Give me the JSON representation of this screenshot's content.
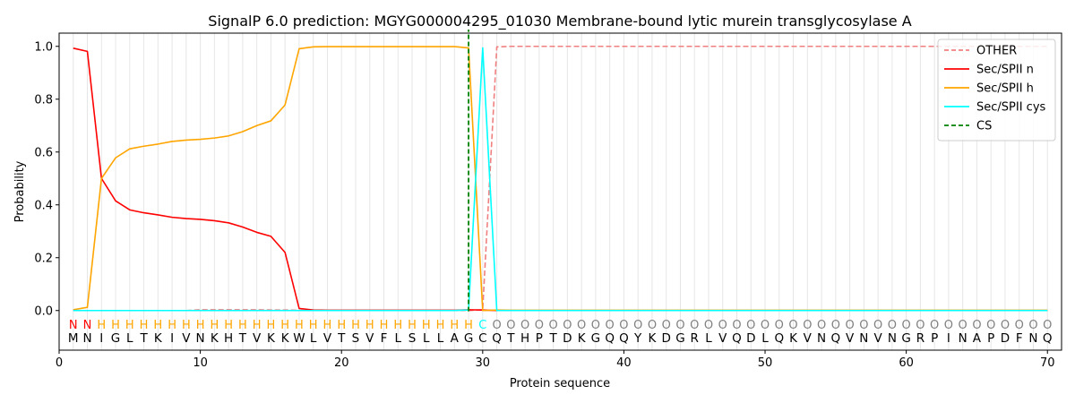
{
  "chart_data": {
    "type": "line",
    "title": "SignalP 6.0 prediction: MGYG000004295_01030 Membrane-bound lytic murein transglycosylase A",
    "xlabel": "Protein sequence",
    "ylabel": "Probability",
    "xlim": [
      0,
      71
    ],
    "ylim": [
      -0.15,
      1.05
    ],
    "xticks": [
      0,
      10,
      20,
      30,
      40,
      50,
      60,
      70
    ],
    "yticks": [
      0.0,
      0.2,
      0.4,
      0.6,
      0.8,
      1.0
    ],
    "xtick_labels": [
      "0",
      "10",
      "20",
      "30",
      "40",
      "50",
      "60",
      "70"
    ],
    "ytick_labels": [
      "0.0",
      "0.2",
      "0.4",
      "0.6",
      "0.8",
      "1.0"
    ],
    "grid": "vertical lines at each residue",
    "legend_position": "top-right",
    "sequence": [
      "M",
      "N",
      "I",
      "G",
      "L",
      "T",
      "K",
      "I",
      "V",
      "N",
      "K",
      "H",
      "T",
      "V",
      "K",
      "K",
      "W",
      "L",
      "V",
      "T",
      "S",
      "V",
      "F",
      "L",
      "S",
      "L",
      "L",
      "A",
      "G",
      "C",
      "Q",
      "T",
      "H",
      "P",
      "T",
      "D",
      "K",
      "G",
      "Q",
      "Q",
      "Y",
      "K",
      "D",
      "G",
      "R",
      "L",
      "V",
      "Q",
      "D",
      "L",
      "Q",
      "K",
      "V",
      "N",
      "Q",
      "V",
      "N",
      "V",
      "N",
      "G",
      "R",
      "P",
      "I",
      "N",
      "A",
      "P",
      "D",
      "F",
      "N",
      "Q"
    ],
    "annotation": [
      "N",
      "N",
      "H",
      "H",
      "H",
      "H",
      "H",
      "H",
      "H",
      "H",
      "H",
      "H",
      "H",
      "H",
      "H",
      "H",
      "H",
      "H",
      "H",
      "H",
      "H",
      "H",
      "H",
      "H",
      "H",
      "H",
      "H",
      "H",
      "H",
      "C",
      "O",
      "O",
      "O",
      "O",
      "O",
      "O",
      "O",
      "O",
      "O",
      "O",
      "O",
      "O",
      "O",
      "O",
      "O",
      "O",
      "O",
      "O",
      "O",
      "O",
      "O",
      "O",
      "O",
      "O",
      "O",
      "O",
      "O",
      "O",
      "O",
      "O",
      "O",
      "O",
      "O",
      "O",
      "O",
      "O",
      "O",
      "O",
      "O",
      "O"
    ],
    "annotation_colors": {
      "N": "#ff0000",
      "H": "#ffa500",
      "C": "#00ffff",
      "O": "#808080"
    },
    "series": [
      {
        "name": "OTHER",
        "color": "#f08080",
        "dash": true,
        "values": [
          0.0,
          0.0,
          0.0,
          0.0,
          0.0,
          0.0,
          0.0,
          0.0,
          0.0,
          0.003,
          0.003,
          0.003,
          0.003,
          0.003,
          0.002,
          0.002,
          0.001,
          0.001,
          0.0,
          0.0,
          0.0,
          0.0,
          0.0,
          0.0,
          0.0,
          0.0,
          0.0,
          0.0,
          0.0,
          0.003,
          0.998,
          1.0,
          1.0,
          1.0,
          1.0,
          1.0,
          1.0,
          1.0,
          1.0,
          1.0,
          1.0,
          1.0,
          1.0,
          1.0,
          1.0,
          1.0,
          1.0,
          1.0,
          1.0,
          1.0,
          1.0,
          1.0,
          1.0,
          1.0,
          1.0,
          1.0,
          1.0,
          1.0,
          1.0,
          1.0,
          1.0,
          1.0,
          1.0,
          1.0,
          1.0,
          1.0,
          1.0,
          1.0,
          1.0,
          1.0
        ]
      },
      {
        "name": "Sec/SPII n",
        "color": "#ff0000",
        "dash": false,
        "values": [
          0.993,
          0.981,
          0.5,
          0.415,
          0.381,
          0.37,
          0.362,
          0.353,
          0.348,
          0.345,
          0.34,
          0.332,
          0.316,
          0.296,
          0.281,
          0.22,
          0.008,
          0.002,
          0.001,
          0.001,
          0.001,
          0.001,
          0.001,
          0.001,
          0.001,
          0.001,
          0.001,
          0.001,
          0.003,
          0.002,
          0.0,
          0.0,
          0.0,
          0.0,
          0.0,
          0.0,
          0.0,
          0.0,
          0.0,
          0.0,
          0.0,
          0.0,
          0.0,
          0.0,
          0.0,
          0.0,
          0.0,
          0.0,
          0.0,
          0.0,
          0.0,
          0.0,
          0.0,
          0.0,
          0.0,
          0.0,
          0.0,
          0.0,
          0.0,
          0.0,
          0.0,
          0.0,
          0.0,
          0.0,
          0.0,
          0.0,
          0.0,
          0.0,
          0.0,
          0.0
        ]
      },
      {
        "name": "Sec/SPII h",
        "color": "#ffa500",
        "dash": false,
        "values": [
          0.003,
          0.012,
          0.5,
          0.578,
          0.612,
          0.622,
          0.63,
          0.64,
          0.645,
          0.648,
          0.653,
          0.661,
          0.677,
          0.7,
          0.718,
          0.778,
          0.991,
          0.998,
          0.999,
          0.999,
          0.999,
          0.999,
          0.999,
          0.999,
          0.999,
          0.999,
          0.999,
          0.999,
          0.994,
          0.0,
          0.002,
          0.001,
          0.001,
          0.001,
          0.001,
          0.001,
          0.001,
          0.001,
          0.001,
          0.001,
          0.001,
          0.001,
          0.001,
          0.001,
          0.001,
          0.001,
          0.001,
          0.001,
          0.001,
          0.001,
          0.001,
          0.001,
          0.001,
          0.001,
          0.001,
          0.001,
          0.001,
          0.001,
          0.001,
          0.001,
          0.001,
          0.001,
          0.001,
          0.001,
          0.001,
          0.001,
          0.001,
          0.001,
          0.001,
          0.001
        ]
      },
      {
        "name": "Sec/SPII cys",
        "color": "#00ffff",
        "dash": false,
        "values": [
          0.0,
          0.0,
          0.0,
          0.0,
          0.0,
          0.0,
          0.0,
          0.0,
          0.0,
          0.0,
          0.0,
          0.0,
          0.0,
          0.0,
          0.0,
          0.0,
          0.0,
          0.0,
          0.0,
          0.0,
          0.0,
          0.0,
          0.0,
          0.0,
          0.0,
          0.0,
          0.0,
          0.0,
          0.002,
          0.994,
          0.0,
          0.0,
          0.0,
          0.0,
          0.0,
          0.0,
          0.0,
          0.0,
          0.0,
          0.0,
          0.0,
          0.0,
          0.0,
          0.0,
          0.0,
          0.0,
          0.0,
          0.0,
          0.0,
          0.0,
          0.0,
          0.0,
          0.0,
          0.0,
          0.0,
          0.0,
          0.0,
          0.0,
          0.0,
          0.0,
          0.0,
          0.0,
          0.0,
          0.0,
          0.0,
          0.0,
          0.0,
          0.0,
          0.0,
          0.0
        ]
      }
    ],
    "cs": {
      "name": "CS",
      "color": "#008000",
      "x": 29
    }
  }
}
